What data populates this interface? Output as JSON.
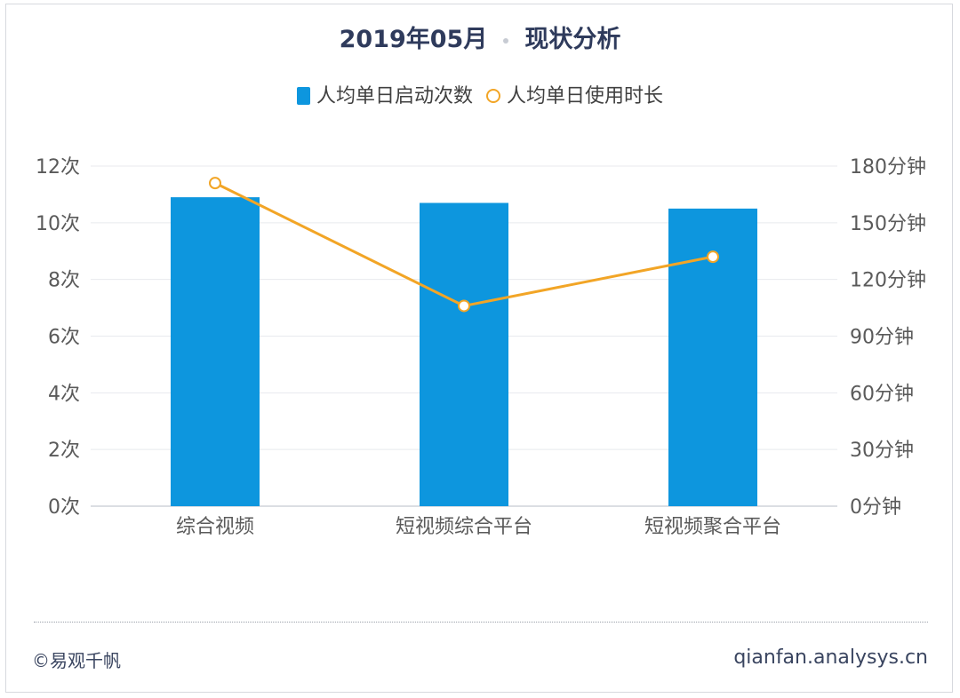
{
  "header": {
    "title_date": "2019年05月",
    "title_topic": "现状分析"
  },
  "footer": {
    "source": "©易观千帆",
    "website": "qianfan.analysys.cn"
  },
  "colors": {
    "bar": "#0d96de",
    "line": "#f2a526",
    "grid": "#e8eaee",
    "axis_text": "#5a5a5a"
  },
  "chart_data": {
    "type": "bar",
    "title": "2019年05月 · 现状分析",
    "categories": [
      "综合视频",
      "短视频综合平台",
      "短视频聚合平台"
    ],
    "series": [
      {
        "name": "人均单日启动次数",
        "type": "bar",
        "axis": "left",
        "values": [
          10.9,
          10.7,
          10.5
        ]
      },
      {
        "name": "人均单日使用时长",
        "type": "line",
        "axis": "right",
        "values": [
          171,
          106,
          132
        ]
      }
    ],
    "y_left": {
      "ylim": [
        0,
        12
      ],
      "ticks": [
        0,
        2,
        4,
        6,
        8,
        10,
        12
      ],
      "tick_labels": [
        "0次",
        "2次",
        "4次",
        "6次",
        "8次",
        "10次",
        "12次"
      ]
    },
    "y_right": {
      "ylim": [
        0,
        180
      ],
      "ticks": [
        0,
        30,
        60,
        90,
        120,
        150,
        180
      ],
      "tick_labels": [
        "0分钟",
        "30分钟",
        "60分钟",
        "90分钟",
        "120分钟",
        "150分钟",
        "180分钟"
      ]
    },
    "legend_position": "top",
    "grid": true
  }
}
